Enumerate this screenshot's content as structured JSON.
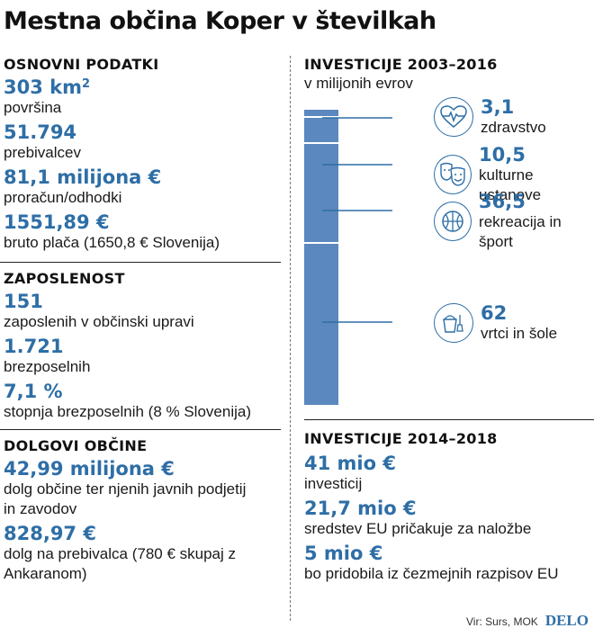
{
  "title": "Mestna občina Koper v številkah",
  "colors": {
    "accent": "#2e6ea6",
    "bar": "#5b88be",
    "text": "#1a1a1a"
  },
  "osnovni": {
    "heading": "OSNOVNI PODATKI",
    "items": [
      {
        "value": "303 km",
        "sup": "2",
        "label": "površina"
      },
      {
        "value": "51.794",
        "label": "prebivalcev"
      },
      {
        "value": "81,1 milijona €",
        "label": "proračun/odhodki"
      },
      {
        "value": "1551,89 €",
        "label": "bruto plača (1650,8 € Slovenija)"
      }
    ]
  },
  "zaposlenost": {
    "heading": "ZAPOSLENOST",
    "items": [
      {
        "value": "151",
        "label": "zaposlenih v občinski upravi"
      },
      {
        "value": "1.721",
        "label": "brezposelnih"
      },
      {
        "value": "7,1 %",
        "label": "stopnja brezposelnih (8 % Slovenija)"
      }
    ]
  },
  "dolgovi": {
    "heading": "DOLGOVI OBČINE",
    "items": [
      {
        "value": "42,99 milijona €",
        "label": "dolg občine ter njenih javnih podjetij in zavodov"
      },
      {
        "value": "828,97 €",
        "label": "dolg na prebivalca (780 € skupaj z Ankaranom)"
      }
    ]
  },
  "investicije_2003": {
    "heading": "INVESTICIJE 2003–2016",
    "subheading": "v milijonih evrov",
    "items": [
      {
        "value": "3,1",
        "label": "zdravstvo",
        "icon": "heart-pulse-icon"
      },
      {
        "value": "10,5",
        "label": "kulturne ustanove",
        "icon": "theater-masks-icon"
      },
      {
        "value": "36,5",
        "label": "rekreacija in šport",
        "icon": "basketball-icon"
      },
      {
        "value": "62",
        "label": "vrtci in šole",
        "icon": "sand-bucket-icon"
      }
    ]
  },
  "investicije_2014": {
    "heading": "INVESTICIJE 2014–2018",
    "items": [
      {
        "value": "41 mio €",
        "label": "investicij"
      },
      {
        "value": "21,7 mio €",
        "label": "sredstev EU pričakuje za naložbe"
      },
      {
        "value": "5 mio €",
        "label": "bo pridobila iz čezmejnih razpisov EU"
      }
    ]
  },
  "source": {
    "text": "Vir: Surs, MOK",
    "logo": "DELO"
  }
}
